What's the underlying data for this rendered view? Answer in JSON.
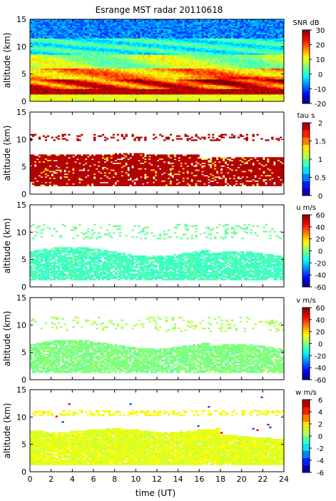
{
  "chart_data": {
    "type": "heatmap",
    "title": "Esrange MST radar 20110618",
    "xlabel": "time (UT)",
    "x_ticks": [
      "0",
      "2",
      "4",
      "6",
      "8",
      "10",
      "12",
      "14",
      "16",
      "18",
      "20",
      "22",
      "24"
    ],
    "xlim": [
      0,
      24
    ],
    "panels": [
      {
        "id": "snr",
        "ylabel": "altitude (km)",
        "ylim": [
          0,
          15
        ],
        "y_ticks": [
          "0",
          "5",
          "10",
          "15"
        ],
        "colorbar_label": "SNR dB",
        "colorbar_range": [
          -20,
          30
        ],
        "colorbar_ticks": [
          "30",
          "20",
          "10",
          "0",
          "-10",
          "-20"
        ],
        "colormap": "jet-continuous"
      },
      {
        "id": "tau",
        "ylabel": "altitude (km)",
        "ylim": [
          0,
          15
        ],
        "y_ticks": [
          "0",
          "5",
          "10",
          "15"
        ],
        "colorbar_label": "tau s",
        "colorbar_range": [
          0,
          2
        ],
        "colorbar_ticks": [
          "2",
          "1.5",
          "1",
          "0.5",
          "0"
        ],
        "colormap": "jet-discrete"
      },
      {
        "id": "u",
        "ylabel": "altitude (km)",
        "ylim": [
          0,
          15
        ],
        "y_ticks": [
          "0",
          "5",
          "10",
          "15"
        ],
        "colorbar_label": "u m/s",
        "colorbar_range": [
          -60,
          60
        ],
        "colorbar_ticks": [
          "60",
          "40",
          "20",
          "0",
          "-20",
          "-40",
          "-60"
        ],
        "colormap": "jet-continuous"
      },
      {
        "id": "v",
        "ylabel": "altitude (km)",
        "ylim": [
          0,
          15
        ],
        "y_ticks": [
          "0",
          "5",
          "10",
          "15"
        ],
        "colorbar_label": "v m/s",
        "colorbar_range": [
          -60,
          60
        ],
        "colorbar_ticks": [
          "60",
          "40",
          "20",
          "0",
          "-20",
          "-40",
          "-60"
        ],
        "colormap": "jet-continuous"
      },
      {
        "id": "w",
        "ylabel": "altitude (km)",
        "ylim": [
          0,
          15
        ],
        "y_ticks": [
          "0",
          "5",
          "10",
          "15"
        ],
        "colorbar_label": "w m/s",
        "colorbar_range": [
          -6,
          6
        ],
        "colorbar_ticks": [
          "6",
          "4",
          "2",
          "0",
          "-2",
          "-4",
          "-6"
        ],
        "colormap": "jet-discrete"
      }
    ]
  }
}
